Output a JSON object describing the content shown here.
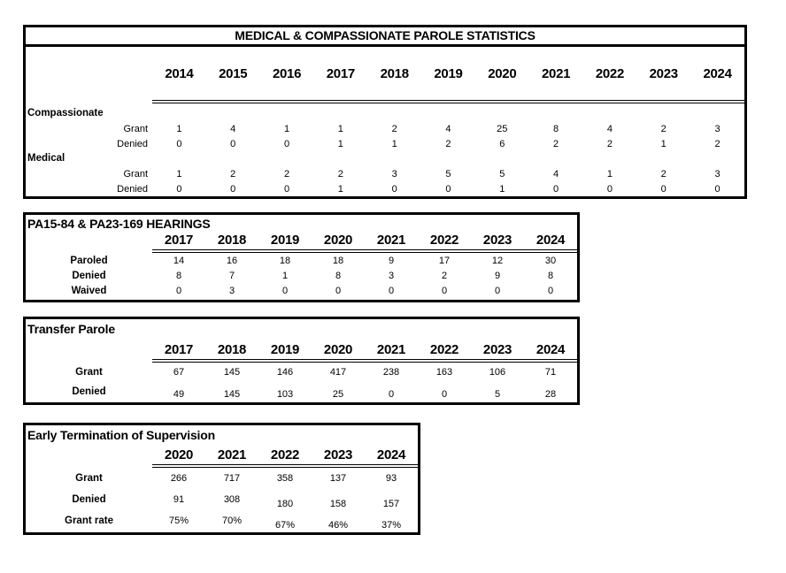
{
  "page": {
    "background_color": "#ffffff",
    "text_color": "#000000",
    "border_color": "#000000"
  },
  "tables": [
    {
      "id": "medical-compassionate-parole",
      "title": "MEDICAL & COMPASSIONATE PAROLE STATISTICS",
      "years": [
        "2014",
        "2015",
        "2016",
        "2017",
        "2018",
        "2019",
        "2020",
        "2021",
        "2022",
        "2023",
        "2024"
      ],
      "sections": [
        {
          "label": "Compassionate",
          "rows": [
            {
              "label": "Grant",
              "values": [
                1,
                4,
                1,
                1,
                2,
                4,
                25,
                8,
                4,
                2,
                3
              ]
            },
            {
              "label": "Denied",
              "values": [
                0,
                0,
                0,
                1,
                1,
                2,
                6,
                2,
                2,
                1,
                2
              ]
            }
          ]
        },
        {
          "label": "Medical",
          "rows": [
            {
              "label": "Grant",
              "values": [
                1,
                2,
                2,
                2,
                3,
                5,
                5,
                4,
                1,
                2,
                3
              ]
            },
            {
              "label": "Denied",
              "values": [
                0,
                0,
                0,
                1,
                0,
                0,
                1,
                0,
                0,
                0,
                0
              ]
            }
          ]
        }
      ]
    },
    {
      "id": "hearings",
      "title": "PA15-84 & PA23-169 HEARINGS",
      "years": [
        "2017",
        "2018",
        "2019",
        "2020",
        "2021",
        "2022",
        "2023",
        "2024"
      ],
      "rows": [
        {
          "label": "Paroled",
          "values": [
            14,
            16,
            18,
            18,
            9,
            17,
            12,
            30
          ]
        },
        {
          "label": "Denied",
          "values": [
            8,
            7,
            1,
            8,
            3,
            2,
            9,
            8
          ]
        },
        {
          "label": "Waived",
          "values": [
            0,
            3,
            0,
            0,
            0,
            0,
            0,
            0
          ]
        }
      ]
    },
    {
      "id": "transfer-parole",
      "title": "Transfer Parole",
      "years": [
        "2017",
        "2018",
        "2019",
        "2020",
        "2021",
        "2022",
        "2023",
        "2024"
      ],
      "rows": [
        {
          "label": "Grant",
          "values": [
            67,
            145,
            146,
            417,
            238,
            163,
            106,
            71
          ]
        },
        {
          "label": "Denied",
          "values": [
            49,
            145,
            103,
            25,
            0,
            0,
            5,
            28
          ]
        }
      ]
    },
    {
      "id": "early-termination-of-supervision",
      "title": "Early Termination of Supervision",
      "years": [
        "2020",
        "2021",
        "2022",
        "2023",
        "2024"
      ],
      "rows": [
        {
          "label": "Grant",
          "values": [
            266,
            717,
            358,
            137,
            93
          ]
        },
        {
          "label": "Denied",
          "values": [
            91,
            308,
            180,
            158,
            157
          ]
        },
        {
          "label": "Grant rate",
          "values": [
            "75%",
            "70%",
            "67%",
            "46%",
            "37%"
          ]
        }
      ]
    }
  ]
}
